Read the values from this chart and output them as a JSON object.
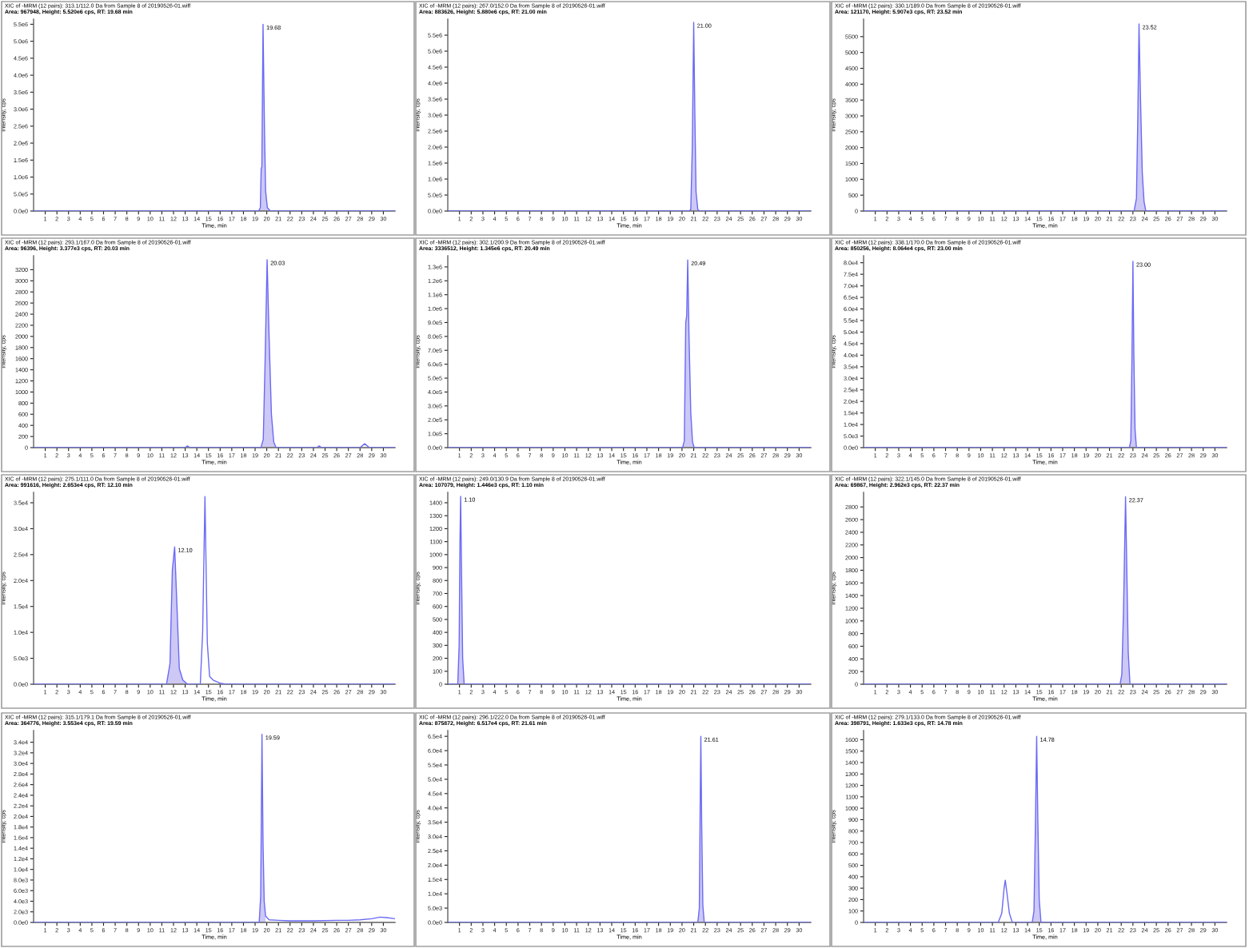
{
  "chart_data": [
    {
      "type": "line",
      "title": "XIC of -MRM (12 pairs): 313.1/112.0 Da from Sample 8 of 20190526-01.wiff",
      "subtitle": "Area: 967948, Height: 5.520e6 cps, RT: 19.68 min",
      "xlabel": "Time, min",
      "ylabel": "Intensity, cps",
      "x": [
        0,
        19.3,
        19.45,
        19.52,
        19.58,
        19.68,
        19.8,
        19.9,
        20.05,
        20.3,
        31
      ],
      "series": [
        {
          "type": "area",
          "color": "#cdc8f4",
          "x": [
            19.3,
            19.45,
            19.52,
            19.58,
            19.68,
            19.8,
            19.9,
            20.05,
            20.3
          ],
          "values": [
            0,
            100000,
            1250000,
            1300000,
            5500000,
            2500000,
            600000,
            100000,
            0
          ]
        },
        {
          "color": "#6a6af5",
          "values": [
            0,
            0,
            100000,
            1250000,
            1300000,
            5500000,
            2500000,
            600000,
            100000,
            0,
            0
          ]
        }
      ],
      "annotations": [
        {
          "text": "19.68",
          "x": 19.68,
          "y": 5500000
        }
      ],
      "xlim": [
        0,
        31
      ],
      "xticks": [
        1,
        2,
        3,
        4,
        5,
        6,
        7,
        8,
        9,
        10,
        11,
        12,
        13,
        14,
        15,
        16,
        17,
        18,
        19,
        20,
        21,
        22,
        23,
        24,
        25,
        26,
        27,
        28,
        29,
        30
      ],
      "ylim": [
        0,
        5650000
      ],
      "yticks": [
        {
          "value": 0,
          "label": "0.0e0"
        },
        {
          "value": 500000,
          "label": "5.0e5"
        },
        {
          "value": 1000000,
          "label": "1.0e6"
        },
        {
          "value": 1500000,
          "label": "1.5e6"
        },
        {
          "value": 2000000,
          "label": "2.0e6"
        },
        {
          "value": 2500000,
          "label": "2.5e6"
        },
        {
          "value": 3000000,
          "label": "3.0e6"
        },
        {
          "value": 3500000,
          "label": "3.5e6"
        },
        {
          "value": 4000000,
          "label": "4.0e6"
        },
        {
          "value": 4500000,
          "label": "4.5e6"
        },
        {
          "value": 5000000,
          "label": "5.0e6"
        },
        {
          "value": 5500000,
          "label": "5.5e6"
        }
      ]
    },
    {
      "type": "line",
      "title": "XIC of -MRM (12 pairs): 267.0/152.0 Da from Sample 8 of 20190526-01.wiff",
      "subtitle": "Area: 883626, Height: 5.880e6 cps, RT: 21.00 min",
      "xlabel": "Time, min",
      "ylabel": "Intensity, cps",
      "x": [
        0,
        20.6,
        20.75,
        20.88,
        21.0,
        21.1,
        21.2,
        21.35,
        21.5,
        31
      ],
      "series": [
        {
          "type": "area",
          "color": "#cdc8f4",
          "x": [
            20.6,
            20.75,
            20.88,
            21.0,
            21.1,
            21.2,
            21.35,
            21.5
          ],
          "values": [
            0,
            50000,
            2000000,
            5900000,
            3000000,
            600000,
            50000,
            0
          ]
        },
        {
          "color": "#6a6af5",
          "values": [
            0,
            0,
            50000,
            2000000,
            5900000,
            3000000,
            600000,
            50000,
            0,
            0
          ]
        }
      ],
      "annotations": [
        {
          "text": "21.00",
          "x": 21.0,
          "y": 5900000
        }
      ],
      "xlim": [
        0,
        31
      ],
      "xticks": [
        1,
        2,
        3,
        4,
        5,
        6,
        7,
        8,
        9,
        10,
        11,
        12,
        13,
        14,
        15,
        16,
        17,
        18,
        19,
        20,
        21,
        22,
        23,
        24,
        25,
        26,
        27,
        28,
        29,
        30
      ],
      "ylim": [
        0,
        6000000
      ],
      "yticks": [
        {
          "value": 0,
          "label": "0.0e0"
        },
        {
          "value": 500000,
          "label": "5.0e5"
        },
        {
          "value": 1000000,
          "label": "1.0e6"
        },
        {
          "value": 1500000,
          "label": "1.5e6"
        },
        {
          "value": 2000000,
          "label": "2.0e6"
        },
        {
          "value": 2500000,
          "label": "2.5e6"
        },
        {
          "value": 3000000,
          "label": "3.0e6"
        },
        {
          "value": 3500000,
          "label": "3.5e6"
        },
        {
          "value": 4000000,
          "label": "4.0e6"
        },
        {
          "value": 4500000,
          "label": "4.5e6"
        },
        {
          "value": 5000000,
          "label": "5.0e6"
        },
        {
          "value": 5500000,
          "label": "5.5e6"
        }
      ]
    },
    {
      "type": "line",
      "title": "XIC of -MRM (12 pairs): 330.1/189.0 Da from Sample 8 of 20190526-01.wiff",
      "subtitle": "Area: 121170, Height: 5.907e3 cps, RT: 23.52 min",
      "xlabel": "Time, min",
      "ylabel": "Intensity, cps",
      "x": [
        0,
        23.1,
        23.3,
        23.42,
        23.52,
        23.65,
        23.8,
        23.95,
        24.1,
        31
      ],
      "series": [
        {
          "type": "area",
          "color": "#cdc8f4",
          "x": [
            23.1,
            23.3,
            23.42,
            23.52,
            23.65,
            23.8,
            23.95,
            24.1
          ],
          "values": [
            0,
            400,
            3000,
            5900,
            3500,
            1200,
            300,
            0
          ]
        },
        {
          "color": "#6a6af5",
          "values": [
            0,
            0,
            400,
            3000,
            5900,
            3500,
            1200,
            300,
            0,
            0
          ]
        }
      ],
      "annotations": [
        {
          "text": "23.52",
          "x": 23.52,
          "y": 5900
        }
      ],
      "xlim": [
        0,
        31
      ],
      "xticks": [
        1,
        2,
        3,
        4,
        5,
        6,
        7,
        8,
        9,
        10,
        11,
        12,
        13,
        14,
        15,
        16,
        17,
        18,
        19,
        20,
        21,
        22,
        23,
        24,
        25,
        26,
        27,
        28,
        29,
        30
      ],
      "ylim": [
        0,
        6050
      ],
      "yticks": [
        0,
        500,
        1000,
        1500,
        2000,
        2500,
        3000,
        3500,
        4000,
        4500,
        5000,
        5500
      ]
    },
    {
      "type": "line",
      "title": "XIC of -MRM (12 pairs): 293.1/167.0 Da from Sample 8 of 20190526-01.wiff",
      "subtitle": "Area: 96396, Height: 3.377e3 cps, RT: 20.03 min",
      "xlabel": "Time, min",
      "ylabel": "Intensity, cps",
      "x": [
        0,
        13.0,
        13.2,
        13.4,
        19.5,
        19.7,
        19.85,
        20.03,
        20.2,
        20.4,
        20.6,
        20.8,
        24.3,
        24.5,
        24.7,
        28.0,
        28.4,
        28.8,
        31
      ],
      "series": [
        {
          "type": "area",
          "color": "#cdc8f4",
          "x": [
            19.5,
            19.7,
            19.85,
            20.03,
            20.2,
            20.4,
            20.6,
            20.8
          ],
          "values": [
            0,
            150,
            1500,
            3380,
            2000,
            600,
            100,
            0
          ]
        },
        {
          "color": "#6a6af5",
          "values": [
            0,
            0,
            30,
            0,
            0,
            150,
            1500,
            3380,
            2000,
            600,
            100,
            0,
            0,
            30,
            0,
            0,
            70,
            0,
            0
          ]
        }
      ],
      "annotations": [
        {
          "text": "20.03",
          "x": 20.03,
          "y": 3380
        }
      ],
      "xlim": [
        0,
        31
      ],
      "xticks": [
        1,
        2,
        3,
        4,
        5,
        6,
        7,
        8,
        9,
        10,
        11,
        12,
        13,
        14,
        15,
        16,
        17,
        18,
        19,
        20,
        21,
        22,
        23,
        24,
        25,
        26,
        27,
        28,
        29,
        30
      ],
      "ylim": [
        0,
        3450
      ],
      "yticks": [
        0,
        200,
        400,
        600,
        800,
        1000,
        1200,
        1400,
        1600,
        1800,
        2000,
        2200,
        2400,
        2600,
        2800,
        3000,
        3200
      ]
    },
    {
      "type": "line",
      "title": "XIC of -MRM (12 pairs): 302.1/200.9 Da from Sample 8 of 20190526-01.wiff",
      "subtitle": "Area: 3336512, Height: 1.345e6 cps, RT: 20.49 min",
      "xlabel": "Time, min",
      "ylabel": "Intensity, cps",
      "x": [
        0,
        20.05,
        20.2,
        20.32,
        20.4,
        20.49,
        20.6,
        20.75,
        20.9,
        21.05,
        31
      ],
      "series": [
        {
          "type": "area",
          "color": "#cdc8f4",
          "x": [
            20.05,
            20.2,
            20.32,
            20.4,
            20.49,
            20.6,
            20.75,
            20.9,
            21.05
          ],
          "values": [
            0,
            50000,
            900000,
            950000,
            1350000,
            800000,
            250000,
            40000,
            0
          ]
        },
        {
          "color": "#6a6af5",
          "values": [
            0,
            0,
            50000,
            900000,
            950000,
            1350000,
            800000,
            250000,
            40000,
            0,
            0
          ]
        }
      ],
      "annotations": [
        {
          "text": "20.49",
          "x": 20.49,
          "y": 1350000
        }
      ],
      "xlim": [
        0,
        31
      ],
      "xticks": [
        1,
        2,
        3,
        4,
        5,
        6,
        7,
        8,
        9,
        10,
        11,
        12,
        13,
        14,
        15,
        16,
        17,
        18,
        19,
        20,
        21,
        22,
        23,
        24,
        25,
        26,
        27,
        28,
        29,
        30
      ],
      "ylim": [
        0,
        1380000
      ],
      "yticks": [
        {
          "value": 0,
          "label": "0.0e0"
        },
        {
          "value": 100000,
          "label": "1.0e5"
        },
        {
          "value": 200000,
          "label": "2.0e5"
        },
        {
          "value": 300000,
          "label": "3.0e5"
        },
        {
          "value": 400000,
          "label": "4.0e5"
        },
        {
          "value": 500000,
          "label": "5.0e5"
        },
        {
          "value": 600000,
          "label": "6.0e5"
        },
        {
          "value": 700000,
          "label": "7.0e5"
        },
        {
          "value": 800000,
          "label": "8.0e5"
        },
        {
          "value": 900000,
          "label": "9.0e5"
        },
        {
          "value": 1000000,
          "label": "1.0e6"
        },
        {
          "value": 1100000,
          "label": "1.1e6"
        },
        {
          "value": 1200000,
          "label": "1.2e6"
        },
        {
          "value": 1300000,
          "label": "1.3e6"
        }
      ]
    },
    {
      "type": "line",
      "title": "XIC of -MRM (12 pairs): 338.1/170.0 Da from Sample 8 of 20190526-01.wiff",
      "subtitle": "Area: 850256, Height: 8.064e4 cps, RT: 23.00 min",
      "xlabel": "Time, min",
      "ylabel": "Intensity, cps",
      "x": [
        0,
        22.7,
        22.82,
        22.92,
        23.0,
        23.08,
        23.18,
        23.3,
        31
      ],
      "series": [
        {
          "type": "area",
          "color": "#cdc8f4",
          "x": [
            22.7,
            22.82,
            22.92,
            23.0,
            23.08,
            23.18,
            23.3
          ],
          "values": [
            0,
            3000,
            40000,
            80600,
            40000,
            8000,
            0
          ]
        },
        {
          "color": "#6a6af5",
          "values": [
            0,
            0,
            3000,
            40000,
            80600,
            40000,
            8000,
            0,
            0
          ]
        }
      ],
      "annotations": [
        {
          "text": "23.00",
          "x": 23.0,
          "y": 80600
        }
      ],
      "xlim": [
        0,
        31
      ],
      "xticks": [
        1,
        2,
        3,
        4,
        5,
        6,
        7,
        8,
        9,
        10,
        11,
        12,
        13,
        14,
        15,
        16,
        17,
        18,
        19,
        20,
        21,
        22,
        23,
        24,
        25,
        26,
        27,
        28,
        29,
        30
      ],
      "ylim": [
        0,
        83000
      ],
      "yticks": [
        {
          "value": 0,
          "label": "0.0e0"
        },
        {
          "value": 5000,
          "label": "5.0e3"
        },
        {
          "value": 10000,
          "label": "1.0e4"
        },
        {
          "value": 15000,
          "label": "1.5e4"
        },
        {
          "value": 20000,
          "label": "2.0e4"
        },
        {
          "value": 25000,
          "label": "2.5e4"
        },
        {
          "value": 30000,
          "label": "3.0e4"
        },
        {
          "value": 35000,
          "label": "3.5e4"
        },
        {
          "value": 40000,
          "label": "4.0e4"
        },
        {
          "value": 45000,
          "label": "4.5e4"
        },
        {
          "value": 50000,
          "label": "5.0e4"
        },
        {
          "value": 55000,
          "label": "5.5e4"
        },
        {
          "value": 60000,
          "label": "6.0e4"
        },
        {
          "value": 65000,
          "label": "6.5e4"
        },
        {
          "value": 70000,
          "label": "7.0e4"
        },
        {
          "value": 75000,
          "label": "7.5e4"
        },
        {
          "value": 80000,
          "label": "8.0e4"
        }
      ]
    },
    {
      "type": "line",
      "title": "XIC of -MRM (12 pairs): 275.1/111.0 Da from Sample 8 of 20190526-01.wiff",
      "subtitle": "Area: 991616, Height: 2.653e4 cps, RT: 12.10 min",
      "xlabel": "Time, min",
      "ylabel": "Intensity, cps",
      "x": [
        0,
        11.4,
        11.7,
        11.9,
        12.1,
        12.3,
        12.5,
        12.8,
        13.2,
        14.3,
        14.5,
        14.7,
        14.9,
        15.1,
        15.4,
        16.0,
        16.5,
        31
      ],
      "series": [
        {
          "type": "area",
          "color": "#cdc8f4",
          "x": [
            11.4,
            11.7,
            11.9,
            12.1,
            12.3,
            12.5,
            12.8,
            13.2
          ],
          "values": [
            0,
            4000,
            22000,
            26500,
            15000,
            3000,
            800,
            0
          ]
        },
        {
          "color": "#6a6af5",
          "values": [
            0,
            0,
            4000,
            22000,
            26500,
            15000,
            3000,
            800,
            0,
            0,
            10000,
            36200,
            8000,
            1500,
            800,
            200,
            0,
            0
          ]
        }
      ],
      "annotations": [
        {
          "text": "12.10",
          "x": 12.1,
          "y": 26500
        }
      ],
      "xlim": [
        0,
        31
      ],
      "xticks": [
        1,
        2,
        3,
        4,
        5,
        6,
        7,
        8,
        9,
        10,
        11,
        12,
        13,
        14,
        15,
        16,
        17,
        18,
        19,
        20,
        21,
        22,
        23,
        24,
        25,
        26,
        27,
        28,
        29,
        30
      ],
      "ylim": [
        0,
        37000
      ],
      "yticks": [
        {
          "value": 0,
          "label": "0.0e0"
        },
        {
          "value": 5000,
          "label": "5.0e3"
        },
        {
          "value": 10000,
          "label": "1.0e4"
        },
        {
          "value": 15000,
          "label": "1.5e4"
        },
        {
          "value": 20000,
          "label": "2.0e4"
        },
        {
          "value": 25000,
          "label": "2.5e4"
        },
        {
          "value": 30000,
          "label": "3.0e4"
        },
        {
          "value": 35000,
          "label": "3.5e4"
        }
      ]
    },
    {
      "type": "line",
      "title": "XIC of -MRM (12 pairs): 249.0/130.9 Da from Sample 8 of 20190526-01.wiff",
      "subtitle": "Area: 107079, Height: 1.446e3 cps, RT: 1.10 min",
      "xlabel": "Time, min",
      "ylabel": "Intensity, cps",
      "x": [
        0,
        0.85,
        0.97,
        1.04,
        1.1,
        1.17,
        1.27,
        1.4,
        31
      ],
      "series": [
        {
          "type": "area",
          "color": "#cdc8f4",
          "x": [
            0.85,
            0.97,
            1.04,
            1.1,
            1.17,
            1.27,
            1.4
          ],
          "values": [
            0,
            300,
            1100,
            1450,
            900,
            200,
            0
          ]
        },
        {
          "color": "#6a6af5",
          "values": [
            0,
            0,
            300,
            1100,
            1450,
            900,
            200,
            0,
            0
          ]
        }
      ],
      "annotations": [
        {
          "text": "1.10",
          "x": 1.1,
          "y": 1450
        }
      ],
      "xlim": [
        0,
        31
      ],
      "xticks": [
        1,
        2,
        3,
        4,
        5,
        6,
        7,
        8,
        9,
        10,
        11,
        12,
        13,
        14,
        15,
        16,
        17,
        18,
        19,
        20,
        21,
        22,
        23,
        24,
        25,
        26,
        27,
        28,
        29,
        30
      ],
      "ylim": [
        0,
        1480
      ],
      "yticks": [
        0,
        100,
        200,
        300,
        400,
        500,
        600,
        700,
        800,
        900,
        1000,
        1100,
        1200,
        1300,
        1400
      ]
    },
    {
      "type": "line",
      "title": "XIC of -MRM (12 pairs): 322.1/145.0 Da from Sample 8 of 20190526-01.wiff",
      "subtitle": "Area: 69867, Height: 2.962e3 cps, RT: 22.37 min",
      "xlabel": "Time, min",
      "ylabel": "Intensity, cps",
      "x": [
        0,
        21.9,
        22.05,
        22.2,
        22.37,
        22.48,
        22.6,
        22.75,
        31
      ],
      "series": [
        {
          "type": "area",
          "color": "#cdc8f4",
          "x": [
            21.9,
            22.05,
            22.2,
            22.37,
            22.48,
            22.6,
            22.75
          ],
          "values": [
            0,
            150,
            1200,
            2960,
            1800,
            500,
            0
          ]
        },
        {
          "color": "#6a6af5",
          "values": [
            0,
            0,
            150,
            1200,
            2960,
            1800,
            500,
            0,
            0
          ]
        }
      ],
      "annotations": [
        {
          "text": "22.37",
          "x": 22.37,
          "y": 2960
        }
      ],
      "xlim": [
        0,
        31
      ],
      "xticks": [
        1,
        2,
        3,
        4,
        5,
        6,
        7,
        8,
        9,
        10,
        11,
        12,
        13,
        14,
        15,
        16,
        17,
        18,
        19,
        20,
        21,
        22,
        23,
        24,
        25,
        26,
        27,
        28,
        29,
        30
      ],
      "ylim": [
        0,
        3030
      ],
      "yticks": [
        0,
        200,
        400,
        600,
        800,
        1000,
        1200,
        1400,
        1600,
        1800,
        2000,
        2200,
        2400,
        2600,
        2800
      ]
    },
    {
      "type": "line",
      "title": "XIC of -MRM (12 pairs): 315.1/179.1 Da from Sample 8 of 20190526-01.wiff",
      "subtitle": "Area: 364776, Height: 3.553e4 cps, RT: 19.59 min",
      "xlabel": "Time, min",
      "ylabel": "Intensity, cps",
      "x": [
        0,
        19.35,
        19.48,
        19.59,
        19.68,
        19.78,
        19.9,
        20.2,
        21.0,
        22.0,
        24.0,
        26.0,
        27.0,
        28.0,
        29.0,
        29.7,
        30.3,
        31
      ],
      "series": [
        {
          "type": "area",
          "color": "#cdc8f4",
          "x": [
            19.35,
            19.48,
            19.59,
            19.68,
            19.78,
            19.9
          ],
          "values": [
            0,
            5000,
            35500,
            15000,
            4000,
            1200
          ]
        },
        {
          "color": "#6a6af5",
          "values": [
            0,
            0,
            5000,
            35500,
            15000,
            4000,
            1200,
            500,
            400,
            300,
            300,
            400,
            400,
            500,
            700,
            1000,
            900,
            700
          ]
        }
      ],
      "annotations": [
        {
          "text": "19.59",
          "x": 19.59,
          "y": 35500
        }
      ],
      "xlim": [
        0,
        31
      ],
      "xticks": [
        1,
        2,
        3,
        4,
        5,
        6,
        7,
        8,
        9,
        10,
        11,
        12,
        13,
        14,
        15,
        16,
        17,
        18,
        19,
        20,
        21,
        22,
        23,
        24,
        25,
        26,
        27,
        28,
        29,
        30
      ],
      "ylim": [
        0,
        36200
      ],
      "yticks": [
        {
          "value": 0,
          "label": "0.0e0"
        },
        {
          "value": 2000,
          "label": "2.0e3"
        },
        {
          "value": 4000,
          "label": "4.0e3"
        },
        {
          "value": 6000,
          "label": "6.0e3"
        },
        {
          "value": 8000,
          "label": "8.0e3"
        },
        {
          "value": 10000,
          "label": "1.0e4"
        },
        {
          "value": 12000,
          "label": "1.2e4"
        },
        {
          "value": 14000,
          "label": "1.4e4"
        },
        {
          "value": 16000,
          "label": "1.6e4"
        },
        {
          "value": 18000,
          "label": "1.8e4"
        },
        {
          "value": 20000,
          "label": "2.0e4"
        },
        {
          "value": 22000,
          "label": "2.2e4"
        },
        {
          "value": 24000,
          "label": "2.4e4"
        },
        {
          "value": 26000,
          "label": "2.6e4"
        },
        {
          "value": 28000,
          "label": "2.8e4"
        },
        {
          "value": 30000,
          "label": "3.0e4"
        },
        {
          "value": 32000,
          "label": "3.2e4"
        },
        {
          "value": 34000,
          "label": "3.4e4"
        }
      ]
    },
    {
      "type": "line",
      "title": "XIC of -MRM (12 pairs): 296.1/222.0 Da from Sample 8 of 20190526-01.wiff",
      "subtitle": "Area: 875872, Height: 6.517e4 cps, RT: 21.61 min",
      "xlabel": "Time, min",
      "ylabel": "Intensity, cps",
      "x": [
        0,
        21.35,
        21.48,
        21.55,
        21.61,
        21.68,
        21.78,
        21.9,
        31
      ],
      "series": [
        {
          "type": "area",
          "color": "#cdc8f4",
          "x": [
            21.35,
            21.48,
            21.55,
            21.61,
            21.68,
            21.78,
            21.9
          ],
          "values": [
            0,
            5000,
            40000,
            65000,
            35000,
            6000,
            0
          ]
        },
        {
          "color": "#6a6af5",
          "values": [
            0,
            0,
            5000,
            40000,
            65000,
            35000,
            6000,
            0,
            0
          ]
        }
      ],
      "annotations": [
        {
          "text": "21.61",
          "x": 21.61,
          "y": 65000
        }
      ],
      "xlim": [
        0,
        31
      ],
      "xticks": [
        1,
        2,
        3,
        4,
        5,
        6,
        7,
        8,
        9,
        10,
        11,
        12,
        13,
        14,
        15,
        16,
        17,
        18,
        19,
        20,
        21,
        22,
        23,
        24,
        25,
        26,
        27,
        28,
        29,
        30
      ],
      "ylim": [
        0,
        67000
      ],
      "yticks": [
        {
          "value": 0,
          "label": "0.0e0"
        },
        {
          "value": 5000,
          "label": "5.0e3"
        },
        {
          "value": 10000,
          "label": "1.0e4"
        },
        {
          "value": 15000,
          "label": "1.5e4"
        },
        {
          "value": 20000,
          "label": "2.0e4"
        },
        {
          "value": 25000,
          "label": "2.5e4"
        },
        {
          "value": 30000,
          "label": "3.0e4"
        },
        {
          "value": 35000,
          "label": "3.5e4"
        },
        {
          "value": 40000,
          "label": "4.0e4"
        },
        {
          "value": 45000,
          "label": "4.5e4"
        },
        {
          "value": 50000,
          "label": "5.0e4"
        },
        {
          "value": 55000,
          "label": "5.5e4"
        },
        {
          "value": 60000,
          "label": "6.0e4"
        },
        {
          "value": 65000,
          "label": "6.5e4"
        }
      ]
    },
    {
      "type": "line",
      "title": "XIC of -MRM (12 pairs): 279.1/133.0 Da from Sample 8 of 20190526-01.wiff",
      "subtitle": "Area: 398791, Height: 1.633e3 cps, RT: 14.78 min",
      "xlabel": "Time, min",
      "ylabel": "Intensity, cps",
      "x": [
        0,
        11.5,
        11.8,
        12.0,
        12.1,
        12.25,
        12.45,
        12.7,
        14.4,
        14.55,
        14.68,
        14.78,
        14.88,
        15.0,
        15.15,
        31
      ],
      "series": [
        {
          "type": "area",
          "color": "#cdc8f4",
          "x": [
            14.4,
            14.55,
            14.68,
            14.78,
            14.88,
            15.0,
            15.15
          ],
          "values": [
            0,
            100,
            900,
            1630,
            900,
            200,
            0
          ]
        },
        {
          "color": "#6a6af5",
          "values": [
            0,
            0,
            80,
            300,
            370,
            250,
            80,
            0,
            0,
            100,
            900,
            1630,
            900,
            200,
            0,
            0
          ]
        }
      ],
      "annotations": [
        {
          "text": "14.78",
          "x": 14.78,
          "y": 1630
        }
      ],
      "xlim": [
        0,
        31
      ],
      "xticks": [
        1,
        2,
        3,
        4,
        5,
        6,
        7,
        8,
        9,
        10,
        11,
        12,
        13,
        14,
        15,
        16,
        17,
        18,
        19,
        20,
        21,
        22,
        23,
        24,
        25,
        26,
        27,
        28,
        29,
        30
      ],
      "ylim": [
        0,
        1680
      ],
      "yticks": [
        0,
        100,
        200,
        300,
        400,
        500,
        600,
        700,
        800,
        900,
        1000,
        1100,
        1200,
        1300,
        1400,
        1500,
        1600
      ]
    }
  ]
}
